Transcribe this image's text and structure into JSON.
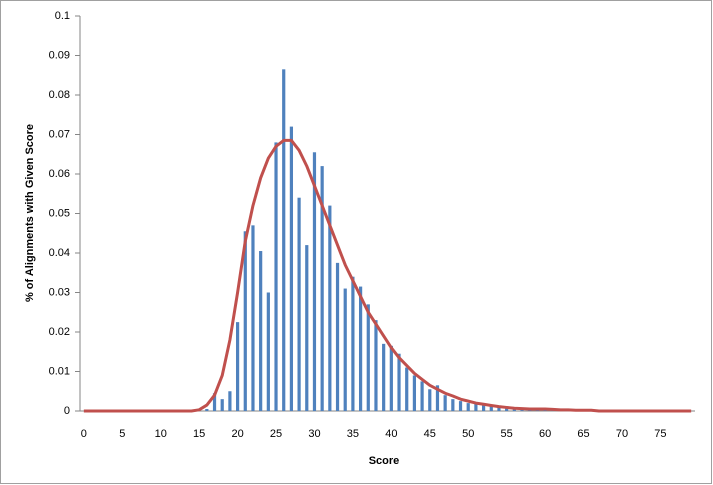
{
  "chart_data": {
    "type": "bar",
    "x_label": "Score",
    "y_label": "% of Alignments with Given Score",
    "categories": [
      "0",
      null,
      null,
      null,
      null,
      "5",
      null,
      null,
      null,
      null,
      "10",
      null,
      null,
      null,
      null,
      "15",
      null,
      null,
      null,
      null,
      "20",
      null,
      null,
      null,
      null,
      "25",
      null,
      null,
      null,
      null,
      "30",
      null,
      null,
      null,
      null,
      "35",
      null,
      null,
      null,
      null,
      "40",
      null,
      null,
      null,
      null,
      "45",
      null,
      null,
      null,
      null,
      "50",
      null,
      null,
      null,
      null,
      "55",
      null,
      null,
      null,
      null,
      "60",
      null,
      null,
      null,
      null,
      "65",
      null,
      null,
      null,
      null,
      "70",
      null,
      null,
      null,
      null,
      "75",
      null,
      null,
      null,
      null
    ],
    "ylim": [
      0,
      0.1
    ],
    "yticks": [
      0,
      0.01,
      0.02,
      0.03,
      0.04,
      0.05,
      0.06,
      0.07,
      0.08,
      0.09,
      0.1
    ],
    "series": [
      {
        "type": "bar",
        "color": "#4f81bd",
        "values": [
          0,
          0,
          0,
          0,
          0,
          0,
          0,
          0,
          0,
          0,
          0,
          0,
          0,
          0,
          0,
          0,
          0.0005,
          0.0045,
          0.003,
          0.005,
          0.0225,
          0.0455,
          0.047,
          0.0405,
          0.03,
          0.068,
          0.0865,
          0.072,
          0.054,
          0.042,
          0.0655,
          0.062,
          0.052,
          0.0375,
          0.031,
          0.034,
          0.0315,
          0.027,
          0.023,
          0.017,
          0.0165,
          0.0145,
          0.011,
          0.009,
          0.0075,
          0.0055,
          0.0065,
          0.004,
          0.003,
          0.0025,
          0.002,
          0.002,
          0.0015,
          0.0015,
          0.001,
          0.001,
          0.0008,
          0.0007,
          0.0005,
          0.0005,
          0.0005,
          0.0003,
          0.0003,
          0.0003,
          0.0003,
          0.0003,
          0.0003,
          0,
          0,
          0,
          0,
          0,
          0,
          0,
          0,
          0,
          0,
          0,
          0,
          0
        ]
      },
      {
        "type": "line",
        "color": "#c0504d",
        "values": [
          0,
          0,
          0,
          0,
          0,
          0,
          0,
          0,
          0,
          0,
          0,
          0,
          0,
          0,
          0,
          0.0003,
          0.0015,
          0.004,
          0.009,
          0.018,
          0.03,
          0.043,
          0.052,
          0.059,
          0.064,
          0.067,
          0.0685,
          0.0685,
          0.066,
          0.062,
          0.057,
          0.052,
          0.047,
          0.042,
          0.037,
          0.033,
          0.029,
          0.025,
          0.022,
          0.019,
          0.016,
          0.0135,
          0.0115,
          0.0095,
          0.008,
          0.0065,
          0.0055,
          0.0045,
          0.0038,
          0.003,
          0.0025,
          0.002,
          0.0017,
          0.0014,
          0.0011,
          0.0009,
          0.0007,
          0.0006,
          0.0005,
          0.0005,
          0.0005,
          0.0004,
          0.0003,
          0.0003,
          0.0002,
          0.0002,
          0.0002,
          0,
          0,
          0,
          0,
          0,
          0,
          0,
          0,
          0,
          0,
          0,
          0,
          0
        ]
      }
    ]
  }
}
